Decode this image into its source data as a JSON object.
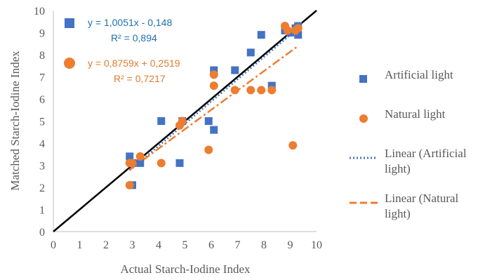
{
  "chart_data": {
    "type": "scatter",
    "title": "",
    "xlabel": "Actual Starch-Iodine Index",
    "ylabel": "Matched Starch-Iodine Index",
    "xlim": [
      0,
      10
    ],
    "ylim": [
      0,
      10
    ],
    "xticks": [
      "0",
      "1",
      "2",
      "3",
      "4",
      "5",
      "6",
      "7",
      "8",
      "9",
      "10"
    ],
    "yticks": [
      "0",
      "1",
      "2",
      "3",
      "4",
      "5",
      "6",
      "7",
      "8",
      "9",
      "10"
    ],
    "grid": false,
    "legend_position": "right",
    "series": [
      {
        "name": "Artificial light",
        "marker": "square",
        "color": "#4472c4",
        "points": [
          [
            2.9,
            3.4
          ],
          [
            3.0,
            3.1
          ],
          [
            3.0,
            2.1
          ],
          [
            3.3,
            3.1
          ],
          [
            4.1,
            5.0
          ],
          [
            4.8,
            3.1
          ],
          [
            4.9,
            5.0
          ],
          [
            5.9,
            5.0
          ],
          [
            6.1,
            4.6
          ],
          [
            6.1,
            7.3
          ],
          [
            6.9,
            7.3
          ],
          [
            7.5,
            8.1
          ],
          [
            7.9,
            8.9
          ],
          [
            8.3,
            6.6
          ],
          [
            8.8,
            9.1
          ],
          [
            9.0,
            9.0
          ],
          [
            9.2,
            9.2
          ],
          [
            9.3,
            8.9
          ],
          [
            9.3,
            9.3
          ]
        ]
      },
      {
        "name": "Natural light",
        "marker": "circle",
        "color": "#ed7d31",
        "points": [
          [
            2.9,
            2.1
          ],
          [
            2.9,
            3.1
          ],
          [
            3.0,
            3.1
          ],
          [
            3.3,
            3.4
          ],
          [
            4.1,
            3.1
          ],
          [
            4.8,
            4.8
          ],
          [
            4.9,
            5.0
          ],
          [
            5.9,
            3.7
          ],
          [
            6.1,
            6.6
          ],
          [
            6.1,
            7.1
          ],
          [
            6.9,
            6.4
          ],
          [
            7.5,
            6.4
          ],
          [
            7.9,
            6.4
          ],
          [
            8.3,
            6.4
          ],
          [
            8.8,
            9.3
          ],
          [
            8.9,
            9.1
          ],
          [
            9.1,
            3.9
          ],
          [
            9.2,
            9.1
          ],
          [
            9.3,
            9.2
          ]
        ]
      },
      {
        "name": "Linear (Artificial light)",
        "type": "trendline",
        "style": "dotted",
        "color": "#4472c4",
        "slope": 1.0051,
        "intercept": -0.148,
        "x_range": [
          2.9,
          9.3
        ]
      },
      {
        "name": "Linear (Natural light)",
        "type": "trendline",
        "style": "dashdot",
        "color": "#ed7d31",
        "slope": 0.8759,
        "intercept": 0.2519,
        "x_range": [
          2.9,
          9.3
        ]
      }
    ],
    "reference_line": {
      "style": "solid",
      "color": "#000000",
      "x": [
        0,
        10
      ],
      "y": [
        0,
        10
      ]
    },
    "annotations": {
      "blue_equation": "y = 1,0051x - 0,148",
      "blue_r2": "R² = 0,894",
      "orange_equation": "y = 0,8759x + 0,2519",
      "orange_r2": "R² = 0,7217"
    }
  }
}
